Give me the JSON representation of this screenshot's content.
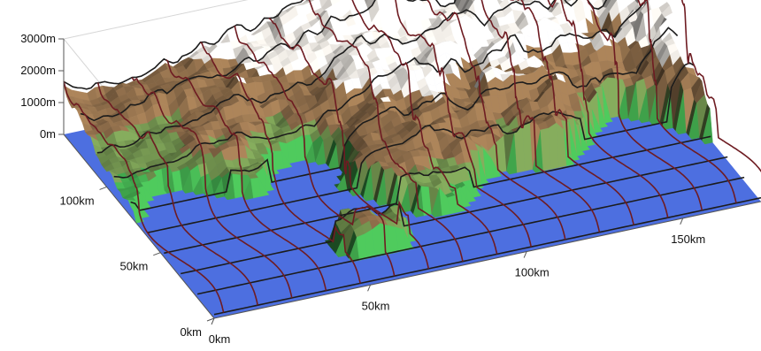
{
  "chart_data": {
    "type": "surface",
    "title": "",
    "x_axis": {
      "label": "",
      "ticks": [
        "0km",
        "50km",
        "100km",
        "150km"
      ],
      "values_km": [
        0,
        50,
        100,
        150
      ],
      "range_km": [
        0,
        175
      ]
    },
    "y_axis": {
      "label": "",
      "ticks": [
        "0km",
        "50km",
        "100km"
      ],
      "values_km": [
        0,
        50,
        100
      ],
      "range_km": [
        0,
        140
      ]
    },
    "z_axis": {
      "label": "",
      "ticks": [
        "0m",
        "1000m",
        "2000m",
        "3000m"
      ],
      "values_m": [
        0,
        1000,
        2000,
        3000
      ],
      "range_m": [
        0,
        3000
      ]
    },
    "surface": "terrain elevation with sea level plane; coastline with islands; mountains highest (about 2000m) in the north-east",
    "overlay": "deformed mesh grid drawn over the terrain",
    "colormap": {
      "sea": "#4d6fe0",
      "lowland": "#3fa24a",
      "hills": "#6b8a4a",
      "mountain": "#8a6a48",
      "snow": "#f0ece6"
    },
    "grid_line_colors": {
      "along_x": "#1c1c1c",
      "along_y": "#6e1c22"
    },
    "grid": true
  }
}
